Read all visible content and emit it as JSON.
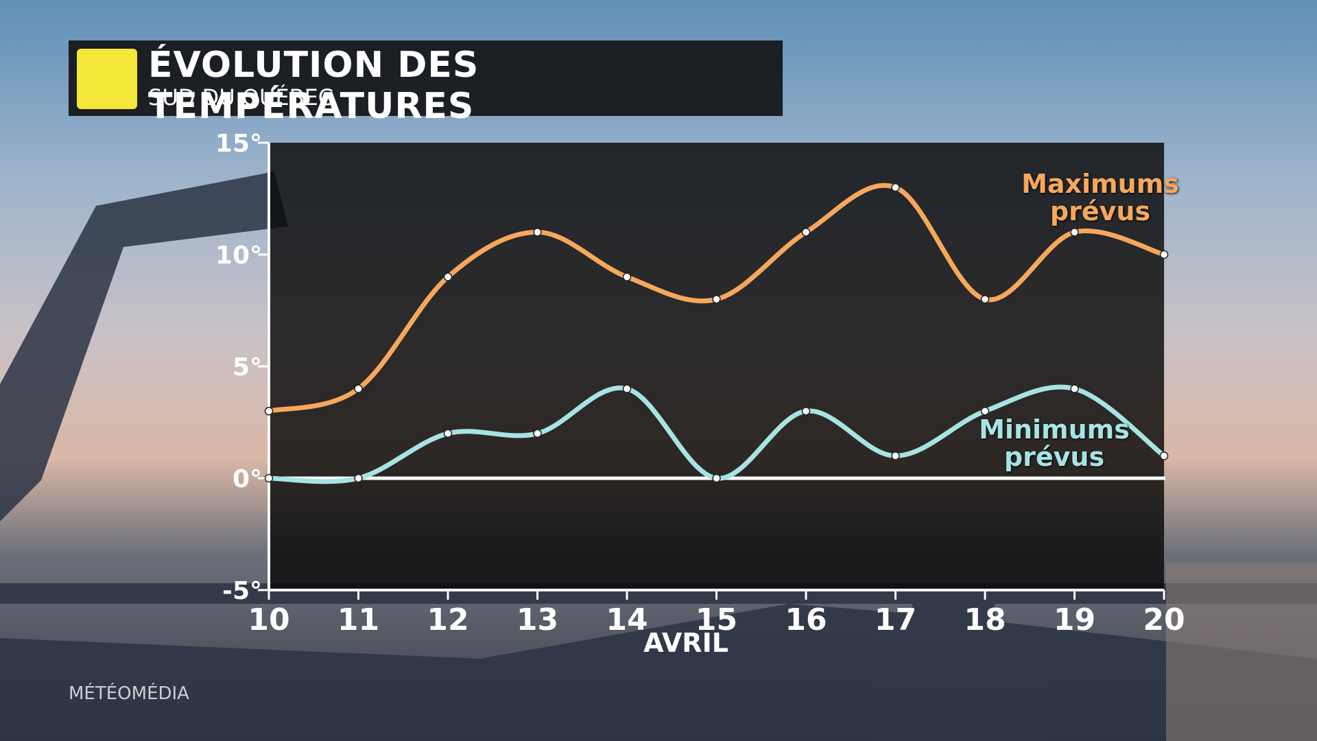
{
  "title": "ÉVOLUTION DES TEMPÉRATURES",
  "subtitle": "SUD DU QUÉBEC",
  "watermark": "MÉTÉOMÉDIA",
  "chart_data": {
    "type": "line",
    "xlabel": "AVRIL",
    "x": [
      10,
      11,
      12,
      13,
      14,
      15,
      16,
      17,
      18,
      19,
      20
    ],
    "series": [
      {
        "name": "Maximums prévus",
        "color": "#f7a75c",
        "values": [
          3,
          4,
          9,
          11,
          9,
          8,
          11,
          13,
          8,
          11,
          10
        ]
      },
      {
        "name": "Minimums prévus",
        "color": "#a6e4e4",
        "values": [
          0,
          0,
          2,
          2,
          4,
          0,
          3,
          1,
          3,
          4,
          1
        ]
      }
    ],
    "xlim": [
      10,
      20
    ],
    "xticks": [
      10,
      11,
      12,
      13,
      14,
      15,
      16,
      17,
      18,
      19,
      20
    ],
    "ylim": [
      -5,
      15
    ],
    "yticks": [
      {
        "value": -5,
        "label": "-5°"
      },
      {
        "value": 0,
        "label": "0°"
      },
      {
        "value": 5,
        "label": "5°"
      },
      {
        "value": 10,
        "label": "10°"
      },
      {
        "value": 15,
        "label": "15°"
      }
    ]
  }
}
